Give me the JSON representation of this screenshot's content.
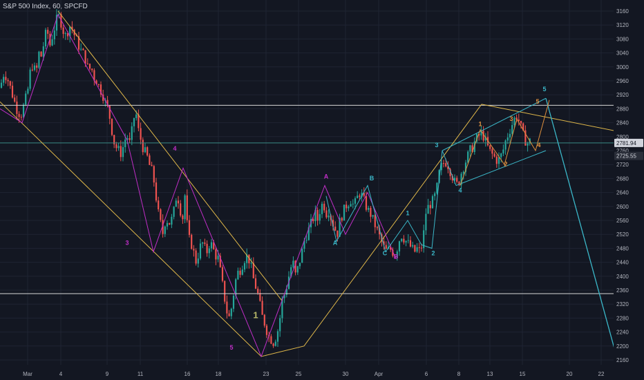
{
  "header": {
    "title": "S&P 500 Index, 60, SPCFD"
  },
  "colors": {
    "background": "#131722",
    "grid": "#1f2433",
    "up": "#26a69a",
    "down": "#ef5350",
    "channel": "#e0b84a",
    "magenta": "#c02ec7",
    "cyan": "#3bb8c9",
    "orange": "#e0913e",
    "white_line": "#d8d8d8",
    "teal_line": "#3a8c85",
    "axis_text": "#b2b5be",
    "last_price_bg": "#d1d4dc"
  },
  "chart_data": {
    "type": "candlestick",
    "title": "S&P 500 Index, 60, SPCFD",
    "ylim": [
      2140,
      3180
    ],
    "y_ticks": [
      2160,
      2200,
      2240,
      2280,
      2320,
      2360,
      2400,
      2440,
      2480,
      2520,
      2560,
      2600,
      2640,
      2680,
      2720,
      2760,
      2800,
      2840,
      2880,
      2920,
      2960,
      3000,
      3040,
      3080,
      3120,
      3160
    ],
    "x_ticks": [
      "Mar",
      "4",
      "9",
      "11",
      "16",
      "18",
      "23",
      "25",
      "30",
      "Apr",
      "6",
      "8",
      "13",
      "15",
      "20",
      "22"
    ],
    "price_labels": [
      "2781.94",
      "2725.55"
    ],
    "horizontal_levels": [
      2890,
      2350,
      2782
    ],
    "candle_anchors": [
      [
        0,
        2940
      ],
      [
        6,
        2985
      ],
      [
        12,
        2960
      ],
      [
        18,
        2920
      ],
      [
        24,
        2880
      ],
      [
        30,
        2860
      ],
      [
        36,
        2900
      ],
      [
        40,
        2930
      ],
      [
        44,
        2990
      ],
      [
        48,
        3010
      ],
      [
        52,
        2975
      ],
      [
        56,
        3040
      ],
      [
        60,
        3030
      ],
      [
        64,
        3075
      ],
      [
        68,
        3110
      ],
      [
        72,
        3060
      ],
      [
        76,
        3090
      ],
      [
        80,
        3120
      ],
      [
        84,
        3150
      ],
      [
        88,
        3130
      ],
      [
        92,
        3100
      ],
      [
        96,
        3085
      ],
      [
        100,
        3120
      ],
      [
        104,
        3110
      ],
      [
        108,
        3090
      ],
      [
        112,
        3070
      ],
      [
        116,
        3050
      ],
      [
        120,
        3040
      ],
      [
        124,
        3020
      ],
      [
        128,
        2990
      ],
      [
        132,
        3000
      ],
      [
        136,
        2970
      ],
      [
        140,
        2960
      ],
      [
        144,
        2940
      ],
      [
        148,
        2925
      ],
      [
        152,
        2900
      ],
      [
        156,
        2880
      ],
      [
        160,
        2845
      ],
      [
        164,
        2790
      ],
      [
        168,
        2770
      ],
      [
        172,
        2760
      ],
      [
        176,
        2750
      ],
      [
        180,
        2790
      ],
      [
        184,
        2800
      ],
      [
        188,
        2780
      ],
      [
        192,
        2830
      ],
      [
        196,
        2880
      ],
      [
        200,
        2820
      ],
      [
        204,
        2790
      ],
      [
        208,
        2760
      ],
      [
        212,
        2750
      ],
      [
        216,
        2720
      ],
      [
        220,
        2700
      ],
      [
        224,
        2660
      ],
      [
        228,
        2590
      ],
      [
        232,
        2555
      ],
      [
        236,
        2520
      ],
      [
        240,
        2570
      ],
      [
        244,
        2550
      ],
      [
        248,
        2560
      ],
      [
        252,
        2590
      ],
      [
        256,
        2640
      ],
      [
        260,
        2600
      ],
      [
        264,
        2560
      ],
      [
        268,
        2640
      ],
      [
        272,
        2510
      ],
      [
        276,
        2500
      ],
      [
        280,
        2470
      ],
      [
        284,
        2440
      ],
      [
        288,
        2470
      ],
      [
        292,
        2500
      ],
      [
        296,
        2480
      ],
      [
        300,
        2470
      ],
      [
        304,
        2500
      ],
      [
        308,
        2480
      ],
      [
        312,
        2460
      ],
      [
        316,
        2450
      ],
      [
        320,
        2400
      ],
      [
        324,
        2350
      ],
      [
        328,
        2300
      ],
      [
        332,
        2280
      ],
      [
        336,
        2320
      ],
      [
        340,
        2380
      ],
      [
        344,
        2410
      ],
      [
        348,
        2420
      ],
      [
        352,
        2440
      ],
      [
        356,
        2460
      ],
      [
        360,
        2450
      ],
      [
        364,
        2420
      ],
      [
        368,
        2380
      ],
      [
        372,
        2360
      ],
      [
        376,
        2320
      ],
      [
        380,
        2280
      ],
      [
        384,
        2260
      ],
      [
        388,
        2230
      ],
      [
        392,
        2220
      ],
      [
        396,
        2210
      ],
      [
        400,
        2230
      ],
      [
        404,
        2260
      ],
      [
        408,
        2330
      ],
      [
        412,
        2350
      ],
      [
        416,
        2380
      ],
      [
        420,
        2420
      ],
      [
        424,
        2440
      ],
      [
        428,
        2400
      ],
      [
        432,
        2430
      ],
      [
        436,
        2460
      ],
      [
        440,
        2500
      ],
      [
        444,
        2520
      ],
      [
        448,
        2540
      ],
      [
        452,
        2560
      ],
      [
        456,
        2580
      ],
      [
        460,
        2560
      ],
      [
        464,
        2600
      ],
      [
        468,
        2610
      ],
      [
        472,
        2580
      ],
      [
        476,
        2590
      ],
      [
        480,
        2560
      ],
      [
        484,
        2540
      ],
      [
        488,
        2520
      ],
      [
        492,
        2560
      ],
      [
        496,
        2580
      ],
      [
        500,
        2600
      ],
      [
        504,
        2610
      ],
      [
        508,
        2620
      ],
      [
        512,
        2600
      ],
      [
        516,
        2620
      ],
      [
        520,
        2640
      ],
      [
        524,
        2630
      ],
      [
        528,
        2610
      ],
      [
        532,
        2590
      ],
      [
        536,
        2580
      ],
      [
        540,
        2560
      ],
      [
        544,
        2540
      ],
      [
        548,
        2520
      ],
      [
        552,
        2500
      ],
      [
        556,
        2480
      ],
      [
        560,
        2470
      ],
      [
        564,
        2480
      ],
      [
        568,
        2470
      ],
      [
        572,
        2460
      ],
      [
        576,
        2490
      ],
      [
        580,
        2520
      ],
      [
        584,
        2510
      ],
      [
        588,
        2500
      ],
      [
        592,
        2490
      ],
      [
        596,
        2480
      ],
      [
        600,
        2470
      ],
      [
        604,
        2480
      ],
      [
        608,
        2470
      ],
      [
        612,
        2500
      ],
      [
        616,
        2580
      ],
      [
        620,
        2600
      ],
      [
        624,
        2610
      ],
      [
        628,
        2620
      ],
      [
        632,
        2650
      ],
      [
        636,
        2700
      ],
      [
        640,
        2720
      ],
      [
        644,
        2730
      ],
      [
        648,
        2720
      ],
      [
        652,
        2700
      ],
      [
        656,
        2680
      ],
      [
        660,
        2660
      ],
      [
        664,
        2670
      ],
      [
        668,
        2700
      ],
      [
        672,
        2720
      ],
      [
        676,
        2740
      ],
      [
        680,
        2760
      ],
      [
        684,
        2770
      ],
      [
        688,
        2790
      ],
      [
        692,
        2800
      ],
      [
        696,
        2810
      ],
      [
        700,
        2800
      ],
      [
        704,
        2780
      ],
      [
        708,
        2760
      ],
      [
        712,
        2750
      ],
      [
        716,
        2740
      ],
      [
        720,
        2730
      ],
      [
        724,
        2740
      ],
      [
        728,
        2760
      ],
      [
        732,
        2790
      ],
      [
        736,
        2810
      ],
      [
        740,
        2830
      ],
      [
        744,
        2850
      ],
      [
        748,
        2860
      ],
      [
        752,
        2840
      ],
      [
        756,
        2810
      ],
      [
        760,
        2790
      ],
      [
        764,
        2780
      ],
      [
        768,
        2790
      ]
    ],
    "labels": [
      {
        "text": "3",
        "x": 184,
        "y": 2490,
        "color": "magenta"
      },
      {
        "text": "4",
        "x": 253,
        "y": 2760,
        "color": "magenta"
      },
      {
        "text": "5",
        "x": 335,
        "y": 2190,
        "color": "magenta"
      },
      {
        "text": "1",
        "x": 370,
        "y": 2280,
        "color": "olive"
      },
      {
        "text": "A",
        "x": 472,
        "y": 2680,
        "color": "magenta"
      },
      {
        "text": "A",
        "x": 485,
        "y": 2490,
        "color": "cyan"
      },
      {
        "text": "B",
        "x": 538,
        "y": 2675,
        "color": "cyan"
      },
      {
        "text": "C",
        "x": 557,
        "y": 2460,
        "color": "cyan"
      },
      {
        "text": "B",
        "x": 573,
        "y": 2450,
        "color": "magenta"
      },
      {
        "text": "1",
        "x": 590,
        "y": 2575,
        "color": "cyan"
      },
      {
        "text": "2",
        "x": 627,
        "y": 2460,
        "color": "cyan"
      },
      {
        "text": "3",
        "x": 632,
        "y": 2770,
        "color": "cyan"
      },
      {
        "text": "4",
        "x": 666,
        "y": 2640,
        "color": "cyan"
      },
      {
        "text": "1",
        "x": 695,
        "y": 2830,
        "color": "orange"
      },
      {
        "text": "2",
        "x": 732,
        "y": 2715,
        "color": "orange"
      },
      {
        "text": "3",
        "x": 740,
        "y": 2845,
        "color": "orange"
      },
      {
        "text": "4",
        "x": 780,
        "y": 2770,
        "color": "orange"
      },
      {
        "text": "5",
        "x": 778,
        "y": 2895,
        "color": "orange"
      },
      {
        "text": "5",
        "x": 788,
        "y": 2930,
        "color": "cyan"
      }
    ]
  }
}
